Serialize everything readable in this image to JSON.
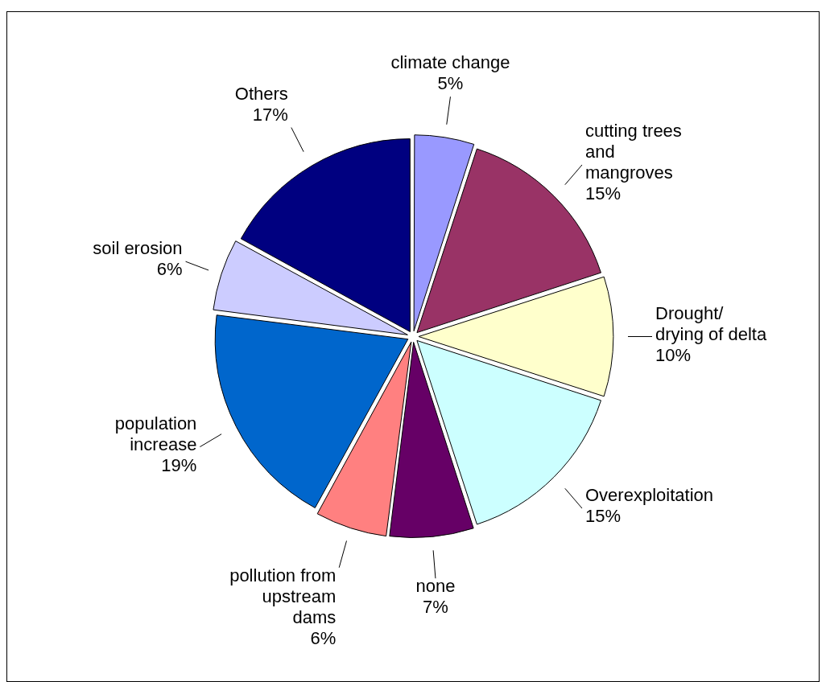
{
  "chart_data": {
    "type": "pie",
    "categories": [
      "climate change",
      "cutting trees and mangroves",
      "Drought/ drying of delta",
      "Overexploitation",
      "none",
      "pollution from upstream dams",
      "population increase",
      "soil erosion",
      "Others"
    ],
    "values": [
      5,
      15,
      10,
      15,
      7,
      6,
      19,
      6,
      17
    ],
    "value_labels": [
      "5%",
      "15%",
      "10%",
      "15%",
      "7%",
      "6%",
      "19%",
      "6%",
      "17%"
    ],
    "colors": [
      "#9999ff",
      "#993366",
      "#ffffcc",
      "#ccffff",
      "#660066",
      "#ff8080",
      "#0066cc",
      "#ccccff",
      "#000080"
    ],
    "legend": false
  }
}
